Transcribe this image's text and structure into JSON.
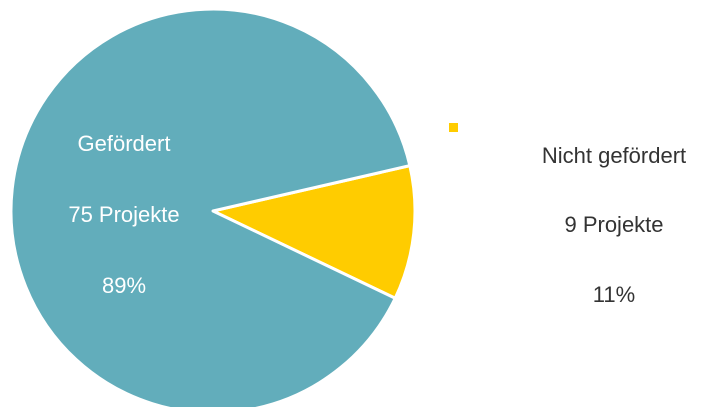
{
  "chart_data": {
    "type": "pie",
    "title": "",
    "slices": [
      {
        "category": "Gefördert",
        "value": 75,
        "value_label": "75 Projekte",
        "percent_label": "89%",
        "color": "#62adbb"
      },
      {
        "category": "Nicht gefördert",
        "value": 9,
        "value_label": "9 Projekte",
        "percent_label": "11%",
        "color": "#ffcc00"
      }
    ],
    "legend": "none",
    "grid": false
  }
}
